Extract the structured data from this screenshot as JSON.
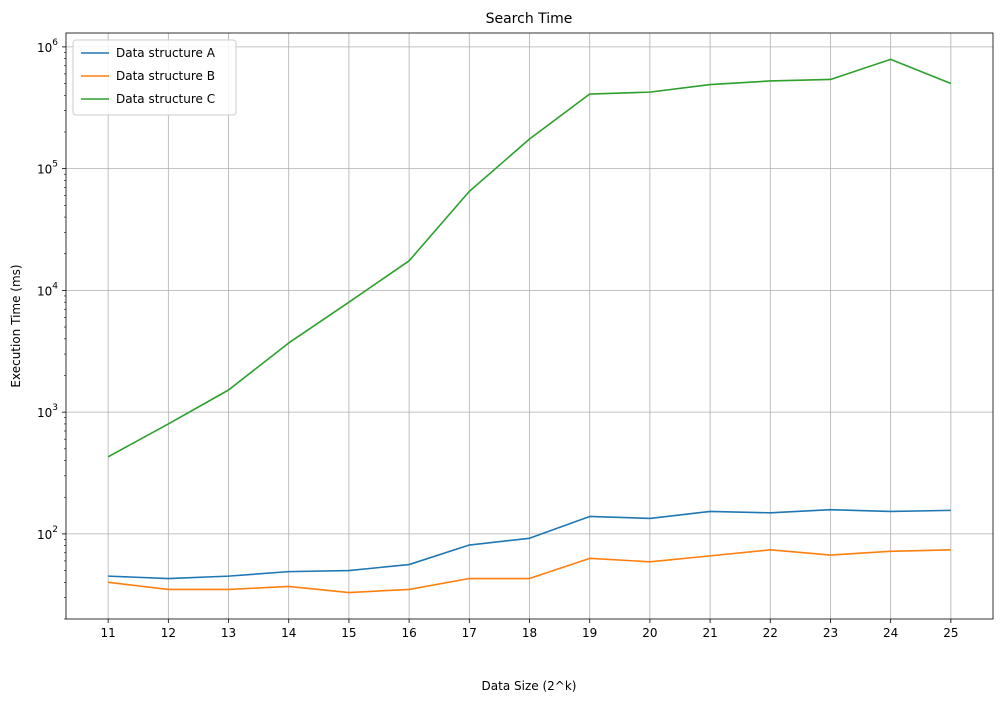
{
  "chart_data": {
    "type": "line",
    "title": "Search Time",
    "xlabel": "Data Size (2^k)",
    "ylabel": "Execution Time (ms)",
    "yscale": "log",
    "ylim": [
      20,
      1300000
    ],
    "xlim": [
      10.3,
      25.7
    ],
    "grid": true,
    "legend_position": "top-left",
    "x": [
      11,
      12,
      13,
      14,
      15,
      16,
      17,
      18,
      19,
      20,
      21,
      22,
      23,
      24,
      25
    ],
    "xtick_labels": [
      "11",
      "12",
      "13",
      "14",
      "15",
      "16",
      "17",
      "18",
      "19",
      "20",
      "21",
      "22",
      "23",
      "24",
      "25"
    ],
    "ytick_labels": [
      {
        "value": 100,
        "mantissa": "10",
        "exp": "2"
      },
      {
        "value": 1000,
        "mantissa": "10",
        "exp": "3"
      },
      {
        "value": 10000,
        "mantissa": "10",
        "exp": "4"
      },
      {
        "value": 100000,
        "mantissa": "10",
        "exp": "5"
      },
      {
        "value": 1000000,
        "mantissa": "10",
        "exp": "6"
      }
    ],
    "series": [
      {
        "name": "Data structure A",
        "color": "#1f77b4",
        "values": [
          45,
          43,
          45,
          49,
          50,
          56,
          81,
          92,
          139,
          134,
          153,
          149,
          158,
          153,
          156
        ]
      },
      {
        "name": "Data structure B",
        "color": "#ff7f0e",
        "values": [
          40,
          35,
          35,
          37,
          33,
          35,
          43,
          43,
          63,
          59,
          66,
          74,
          67,
          72,
          74
        ]
      },
      {
        "name": "Data structure C",
        "color": "#2ca02c",
        "values": [
          430,
          800,
          1520,
          3700,
          8000,
          17500,
          65000,
          175000,
          410000,
          425000,
          490000,
          525000,
          540000,
          790000,
          500000
        ]
      }
    ]
  }
}
